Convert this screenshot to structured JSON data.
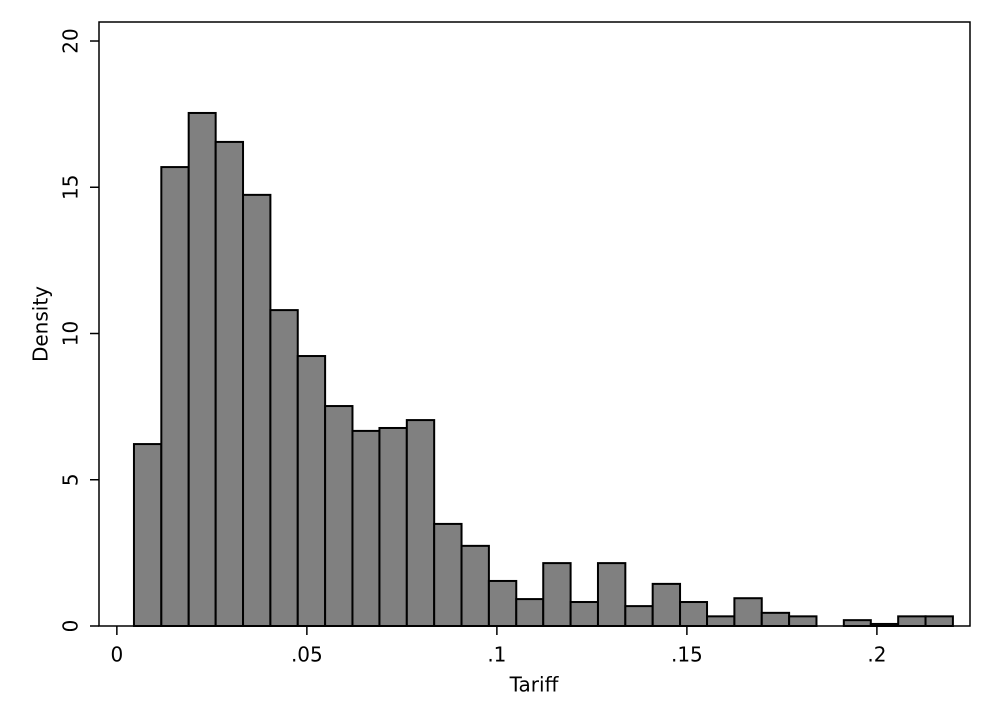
{
  "chart_data": {
    "type": "histogram",
    "x_label": "Tariff",
    "y_label": "Density",
    "bins": [
      0.0045,
      0.0117,
      0.0189,
      0.026,
      0.0332,
      0.0404,
      0.0476,
      0.0548,
      0.062,
      0.0691,
      0.0763,
      0.0835,
      0.0907,
      0.0979,
      0.1051,
      0.1122,
      0.1194,
      0.1266,
      0.1338,
      0.141,
      0.1482,
      0.1553,
      0.1625,
      0.1697,
      0.1769,
      0.1841,
      0.1913,
      0.1984,
      0.2056,
      0.2128,
      0.22
    ],
    "values": [
      6.22,
      15.69,
      17.54,
      16.55,
      14.74,
      10.8,
      9.23,
      7.52,
      6.67,
      6.77,
      7.04,
      3.49,
      2.74,
      1.54,
      0.92,
      2.15,
      0.82,
      2.15,
      0.68,
      1.44,
      0.82,
      0.33,
      0.95,
      0.45,
      0.33,
      0,
      0.2,
      0.07,
      0.33,
      0.33
    ],
    "color": "#808080",
    "xlim": [
      -0.0047,
      0.2245
    ],
    "ylim": [
      0,
      20.65
    ],
    "xticks": [
      0,
      {
        "value": 0.05,
        "label": ".05"
      },
      {
        "value": 0.1,
        "label": ".1"
      },
      {
        "value": 0.15,
        "label": ".15"
      },
      {
        "value": 0.2,
        "label": ".2"
      }
    ],
    "yticks": [
      0,
      5,
      10,
      15,
      20
    ]
  }
}
